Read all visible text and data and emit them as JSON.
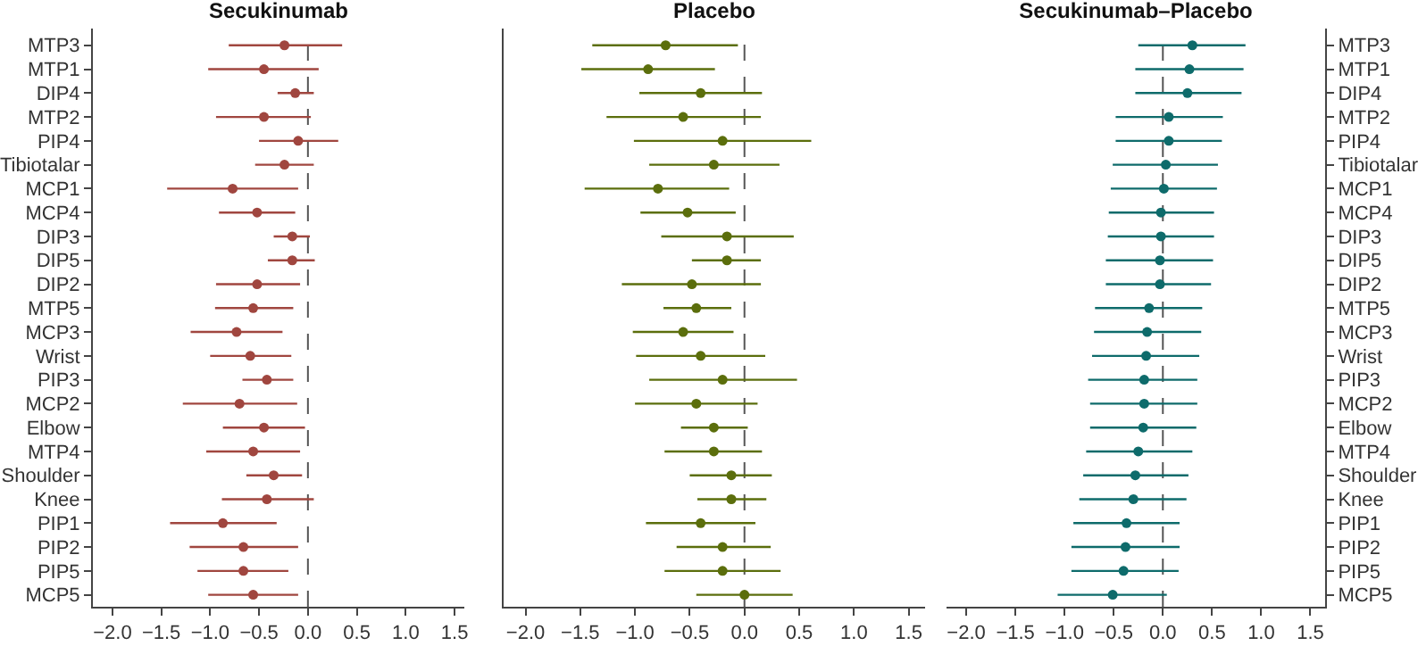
{
  "chart_data": [
    {
      "type": "scatter",
      "title": "Secukinumab",
      "orientation": "horizontal",
      "marker": "circle",
      "grid": false,
      "categories": [
        "MTP3",
        "MTP1",
        "DIP4",
        "MTP2",
        "PIP4",
        "Tibiotalar",
        "MCP1",
        "MCP4",
        "DIP3",
        "DIP5",
        "DIP2",
        "MTP5",
        "MCP3",
        "Wrist",
        "PIP3",
        "MCP2",
        "Elbow",
        "MTP4",
        "Shoulder",
        "Knee",
        "PIP1",
        "PIP2",
        "PIP5",
        "MCP5"
      ],
      "xlim": [
        -2.2,
        1.6
      ],
      "xticks": [
        {
          "value": -2,
          "label": "−2.0"
        },
        {
          "value": -1.5,
          "label": "−1.5"
        },
        {
          "value": -1,
          "label": "−1.0"
        },
        {
          "value": -0.5,
          "label": "−0.5"
        },
        {
          "value": 0,
          "label": "0.0"
        },
        {
          "value": 0.5,
          "label": "0.5"
        },
        {
          "value": 1,
          "label": "1.0"
        },
        {
          "value": 1.5,
          "label": "1.5"
        }
      ],
      "ref_lines": [
        {
          "axis": "x",
          "value": 0,
          "line_style": "dashed"
        }
      ],
      "series": [
        {
          "color": "#a0463f",
          "values": [
            -0.24,
            -0.45,
            -0.13,
            -0.45,
            -0.1,
            -0.24,
            -0.77,
            -0.52,
            -0.16,
            -0.16,
            -0.52,
            -0.56,
            -0.73,
            -0.59,
            -0.42,
            -0.7,
            -0.45,
            -0.56,
            -0.35,
            -0.42,
            -0.87,
            -0.66,
            -0.66,
            -0.56
          ],
          "errors": [
            [
              -0.81,
              0.35
            ],
            [
              -1.02,
              0.11
            ],
            [
              -0.31,
              0.06
            ],
            [
              -0.94,
              0.03
            ],
            [
              -0.5,
              0.31
            ],
            [
              -0.54,
              0.06
            ],
            [
              -1.44,
              -0.1
            ],
            [
              -0.91,
              -0.13
            ],
            [
              -0.35,
              0.02
            ],
            [
              -0.41,
              0.07
            ],
            [
              -0.94,
              -0.08
            ],
            [
              -0.95,
              -0.15
            ],
            [
              -1.2,
              -0.26
            ],
            [
              -1.0,
              -0.17
            ],
            [
              -0.67,
              -0.15
            ],
            [
              -1.28,
              -0.11
            ],
            [
              -0.87,
              -0.03
            ],
            [
              -1.04,
              -0.08
            ],
            [
              -0.63,
              -0.06
            ],
            [
              -0.88,
              0.06
            ],
            [
              -1.41,
              -0.32
            ],
            [
              -1.21,
              -0.1
            ],
            [
              -1.13,
              -0.2
            ],
            [
              -1.02,
              -0.1
            ]
          ]
        }
      ]
    },
    {
      "type": "scatter",
      "title": "Placebo",
      "orientation": "horizontal",
      "marker": "circle",
      "grid": false,
      "tick_labels": "x",
      "categories": [
        null,
        null,
        null,
        null,
        null,
        null,
        null,
        null,
        null,
        null,
        null,
        null,
        null,
        null,
        null,
        null,
        null,
        null,
        null,
        null,
        null,
        null,
        null,
        null
      ],
      "xlim": [
        -2.2,
        1.65
      ],
      "xticks": [
        {
          "value": -2,
          "label": "−2.0"
        },
        {
          "value": -1.5,
          "label": "−1.5"
        },
        {
          "value": -1,
          "label": "−1.0"
        },
        {
          "value": -0.5,
          "label": "−0.5"
        },
        {
          "value": 0,
          "label": "0.0"
        },
        {
          "value": 0.5,
          "label": "0.5"
        },
        {
          "value": 1,
          "label": "1.0"
        },
        {
          "value": 1.5,
          "label": "1.5"
        }
      ],
      "ref_lines": [
        {
          "axis": "x",
          "value": 0,
          "line_style": "dashed"
        }
      ],
      "series": [
        {
          "color": "#5b6e0c",
          "values": [
            -0.72,
            -0.88,
            -0.4,
            -0.56,
            -0.2,
            -0.28,
            -0.79,
            -0.52,
            -0.16,
            -0.16,
            -0.48,
            -0.44,
            -0.56,
            -0.4,
            -0.2,
            -0.44,
            -0.28,
            -0.28,
            -0.12,
            -0.12,
            -0.4,
            -0.2,
            -0.2,
            0.0
          ],
          "errors": [
            [
              -1.39,
              -0.06
            ],
            [
              -1.49,
              -0.27
            ],
            [
              -0.96,
              0.16
            ],
            [
              -1.26,
              0.15
            ],
            [
              -1.01,
              0.61
            ],
            [
              -0.87,
              0.32
            ],
            [
              -1.46,
              -0.14
            ],
            [
              -0.95,
              -0.08
            ],
            [
              -0.76,
              0.45
            ],
            [
              -0.48,
              0.15
            ],
            [
              -1.12,
              0.15
            ],
            [
              -0.74,
              -0.12
            ],
            [
              -1.02,
              -0.1
            ],
            [
              -0.99,
              0.19
            ],
            [
              -0.87,
              0.48
            ],
            [
              -1.0,
              0.12
            ],
            [
              -0.58,
              0.03
            ],
            [
              -0.73,
              0.16
            ],
            [
              -0.5,
              0.25
            ],
            [
              -0.43,
              0.2
            ],
            [
              -0.9,
              0.1
            ],
            [
              -0.62,
              0.24
            ],
            [
              -0.73,
              0.33
            ],
            [
              -0.44,
              0.44
            ]
          ]
        }
      ]
    },
    {
      "type": "scatter",
      "title": "Secukinumab–Placebo",
      "orientation": "horizontal",
      "marker": "circle",
      "grid": false,
      "categories": [
        "MTP3",
        "MTP1",
        "DIP4",
        "MTP2",
        "PIP4",
        "Tibiotalar",
        "MCP1",
        "MCP4",
        "DIP3",
        "DIP5",
        "DIP2",
        "MTP5",
        "MCP3",
        "Wrist",
        "PIP3",
        "MCP2",
        "Elbow",
        "MTP4",
        "Shoulder",
        "Knee",
        "PIP1",
        "PIP2",
        "PIP5",
        "MCP5"
      ],
      "xlim": [
        -2.2,
        1.65
      ],
      "xticks": [
        {
          "value": -2,
          "label": "−2.0"
        },
        {
          "value": -1.5,
          "label": "−1.5"
        },
        {
          "value": -1,
          "label": "−1.0"
        },
        {
          "value": -0.5,
          "label": "−0.5"
        },
        {
          "value": 0,
          "label": "0.0"
        },
        {
          "value": 0.5,
          "label": "0.5"
        },
        {
          "value": 1,
          "label": "1.0"
        },
        {
          "value": 1.5,
          "label": "1.5"
        }
      ],
      "ref_lines": [
        {
          "axis": "x",
          "value": 0,
          "line_style": "dashed"
        }
      ],
      "series": [
        {
          "color": "#0e6b6b",
          "values": [
            0.3,
            0.27,
            0.25,
            0.06,
            0.06,
            0.03,
            0.01,
            -0.02,
            -0.02,
            -0.03,
            -0.03,
            -0.14,
            -0.16,
            -0.17,
            -0.19,
            -0.19,
            -0.2,
            -0.25,
            -0.28,
            -0.3,
            -0.37,
            -0.38,
            -0.4,
            -0.51
          ],
          "errors": [
            [
              -0.25,
              0.84
            ],
            [
              -0.28,
              0.82
            ],
            [
              -0.28,
              0.8
            ],
            [
              -0.48,
              0.61
            ],
            [
              -0.48,
              0.6
            ],
            [
              -0.51,
              0.56
            ],
            [
              -0.53,
              0.55
            ],
            [
              -0.55,
              0.52
            ],
            [
              -0.56,
              0.52
            ],
            [
              -0.58,
              0.51
            ],
            [
              -0.58,
              0.49
            ],
            [
              -0.69,
              0.4
            ],
            [
              -0.7,
              0.39
            ],
            [
              -0.72,
              0.37
            ],
            [
              -0.76,
              0.35
            ],
            [
              -0.74,
              0.35
            ],
            [
              -0.74,
              0.34
            ],
            [
              -0.78,
              0.3
            ],
            [
              -0.81,
              0.26
            ],
            [
              -0.85,
              0.24
            ],
            [
              -0.91,
              0.17
            ],
            [
              -0.93,
              0.17
            ],
            [
              -0.93,
              0.16
            ],
            [
              -1.07,
              0.04
            ]
          ]
        }
      ]
    }
  ]
}
